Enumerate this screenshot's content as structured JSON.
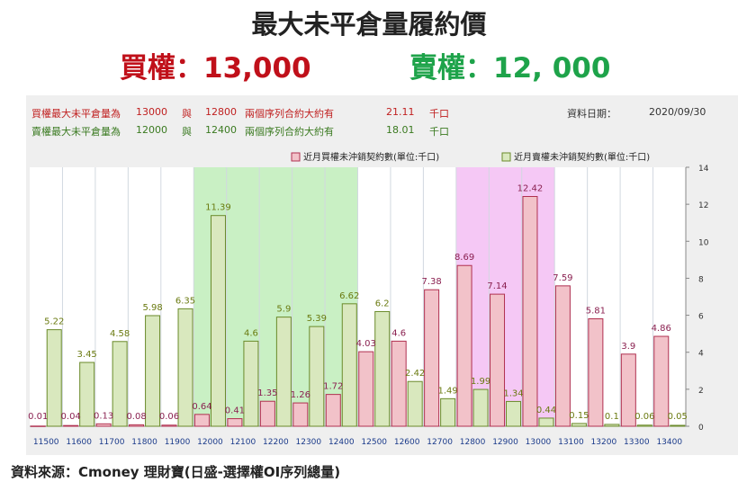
{
  "header": {
    "title": "最大未平倉量履約價",
    "buy_label": "買權：13,000",
    "sell_label": "賣權：12, 000"
  },
  "info": {
    "buy_row": {
      "text": "買權最大未平倉量為",
      "strike": "13000",
      "conj": "與",
      "strike2": "12800",
      "desc": "兩個序列合約大約有",
      "value": "21.11",
      "unit": "千口"
    },
    "sell_row": {
      "text": "賣權最大未平倉量為",
      "strike": "12000",
      "conj": "與",
      "strike2": "12400",
      "desc": "兩個序列合約大約有",
      "value": "18.01",
      "unit": "千口"
    },
    "date_label": "資料日期：",
    "date_value": "2020/09/30"
  },
  "source": "資料來源：Cmoney 理財寶(日盛-選擇權OI序列總量)",
  "colors": {
    "call_fill": "#f2c2c9",
    "call_stroke": "#b03050",
    "put_fill": "#d9e8be",
    "put_stroke": "#6a8a2a",
    "call_label": "#8a2050",
    "put_label": "#6a7a10",
    "green_zone": "#c9f0c4",
    "pink_zone": "#f5c8f5"
  },
  "chart_data": {
    "type": "bar",
    "categories": [
      "11500",
      "11600",
      "11700",
      "11800",
      "11900",
      "12000",
      "12100",
      "12200",
      "12300",
      "12400",
      "12500",
      "12600",
      "12700",
      "12800",
      "12900",
      "13000",
      "13100",
      "13200",
      "13300",
      "13400"
    ],
    "series": [
      {
        "name": "近月買權未沖銷契約數(單位:千口)",
        "values": [
          0.01,
          0.04,
          0.13,
          0.08,
          0.06,
          0.64,
          0.41,
          1.35,
          1.26,
          1.72,
          4.03,
          4.6,
          7.38,
          8.69,
          7.14,
          12.42,
          7.59,
          5.81,
          3.9,
          4.86
        ]
      },
      {
        "name": "近月賣權未沖銷契約數(單位:千口)",
        "values": [
          5.22,
          3.45,
          4.58,
          5.98,
          6.35,
          11.39,
          4.6,
          5.9,
          5.39,
          6.62,
          6.2,
          2.42,
          1.49,
          1.99,
          1.34,
          0.44,
          0.15,
          0.1,
          0.06,
          0.05
        ]
      }
    ],
    "data_labels": {
      "call": [
        "0.01",
        "0.04",
        "0.13",
        "0.08",
        "0.06",
        "0.64",
        "0.41",
        "1.35",
        "1.26",
        "1.72",
        "4.03",
        "4.6",
        "7.38",
        "8.69",
        "7.14",
        "12.42",
        "7.59",
        "5.81",
        "3.9",
        "4.86"
      ],
      "put": [
        "5.22",
        "3.45",
        "4.58",
        "5.98",
        "6.35",
        "11.39",
        "4.6",
        "5.9",
        "5.39",
        "6.62",
        "6.2",
        "2.42",
        "1.49",
        "1.99",
        "1.34",
        "0.44",
        "0.15",
        "0.1",
        "0.06",
        "0.05"
      ]
    },
    "ylim": [
      0,
      14
    ],
    "yticks": [
      "0",
      "2",
      "4",
      "6",
      "8",
      "10",
      "12",
      "14"
    ],
    "highlight_ranges": [
      {
        "from": "12000",
        "to": "12400",
        "kind": "sell"
      },
      {
        "from": "12800",
        "to": "13000",
        "kind": "buy"
      }
    ],
    "legend_position": "top-right",
    "grid": "vertical"
  }
}
